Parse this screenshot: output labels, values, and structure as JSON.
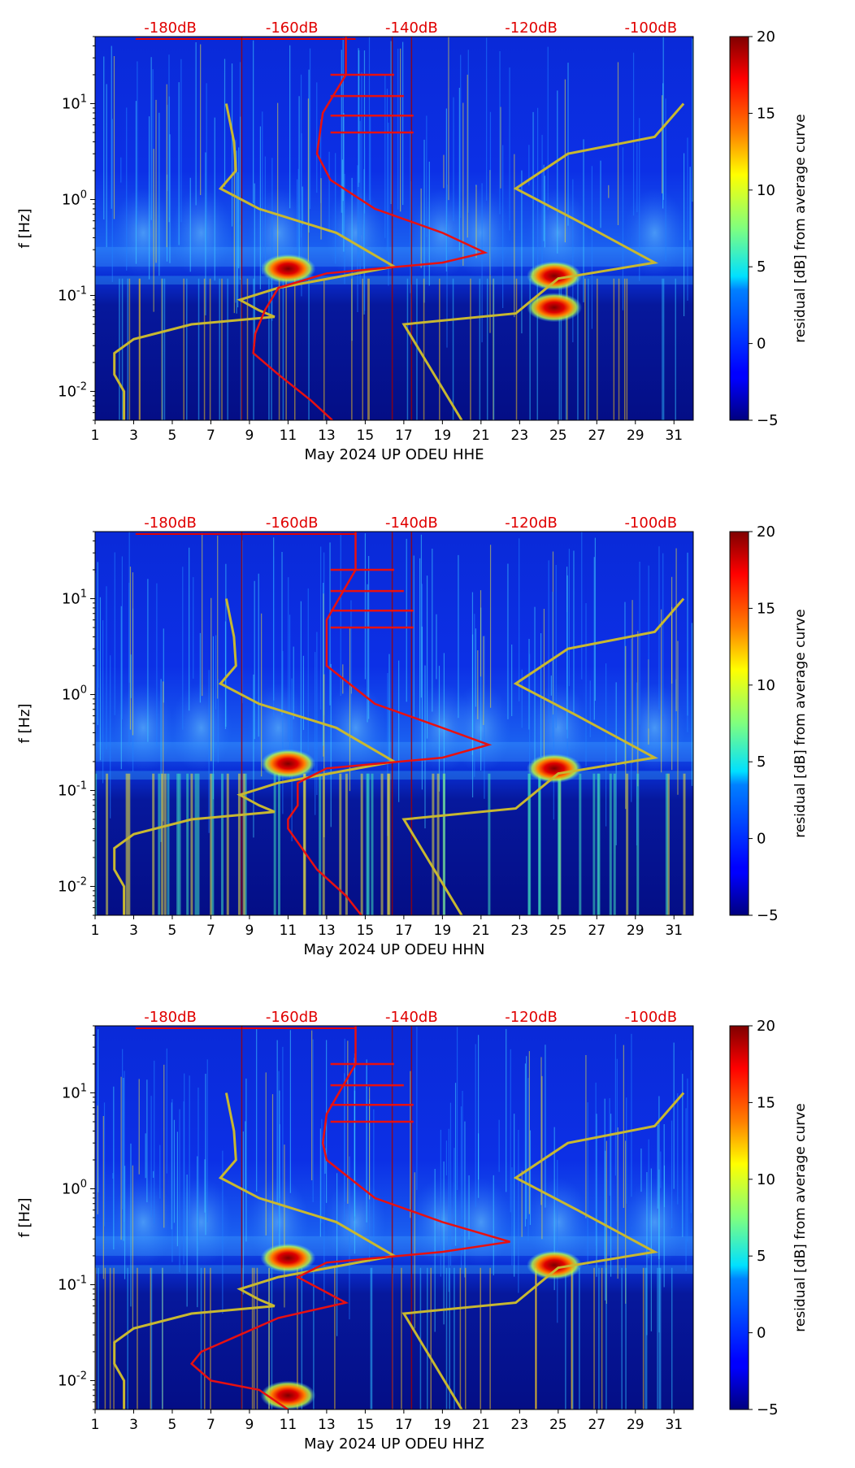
{
  "figure": {
    "description_free": true
  },
  "chart_data": [
    {
      "type": "heatmap",
      "title": "",
      "xlabel": "May 2024 UP ODEU  HHE",
      "ylabel": "f [Hz]",
      "x_ticks": [
        "1",
        "3",
        "5",
        "7",
        "9",
        "11",
        "13",
        "15",
        "17",
        "19",
        "21",
        "23",
        "25",
        "27",
        "29",
        "31"
      ],
      "xlim": [
        1,
        32
      ],
      "y_ticks": [
        {
          "exp": "-2",
          "value": 0.01
        },
        {
          "exp": "-1",
          "value": 0.1
        },
        {
          "exp": "0",
          "value": 1
        },
        {
          "exp": "1",
          "value": 10
        }
      ],
      "ylim": [
        0.005,
        50
      ],
      "y_scale": "log",
      "top_labels": [
        "-180dB",
        "-160dB",
        "-140dB",
        "-120dB",
        "-100dB"
      ],
      "top_label_color": "#e00000",
      "colorbar": {
        "label": "residual [dB] from average curve",
        "ticks": [
          "20",
          "15",
          "10",
          "5",
          "0",
          "−5"
        ],
        "range": [
          -5,
          20
        ]
      },
      "red_curve_day_vs_freq": [
        [
          14.0,
          50
        ],
        [
          14.0,
          20
        ],
        [
          12.8,
          8
        ],
        [
          12.5,
          3
        ],
        [
          13.2,
          1.6
        ],
        [
          15.5,
          0.8
        ],
        [
          19,
          0.45
        ],
        [
          21.2,
          0.28
        ],
        [
          19,
          0.22
        ],
        [
          13,
          0.17
        ],
        [
          10.5,
          0.12
        ],
        [
          9.8,
          0.07
        ],
        [
          9.3,
          0.04
        ],
        [
          9.2,
          0.025
        ],
        [
          10.5,
          0.015
        ],
        [
          12.2,
          0.008
        ],
        [
          13.3,
          0.005
        ]
      ],
      "yellow_curves": [
        [
          [
            7.8,
            10
          ],
          [
            8.2,
            4
          ],
          [
            8.3,
            2
          ],
          [
            7.5,
            1.3
          ],
          [
            9.5,
            0.8
          ],
          [
            13.5,
            0.45
          ],
          [
            16.5,
            0.2
          ],
          [
            10.5,
            0.12
          ],
          [
            8.5,
            0.09
          ],
          [
            9.5,
            0.07
          ],
          [
            10.3,
            0.06
          ],
          [
            6,
            0.05
          ],
          [
            3,
            0.035
          ],
          [
            2,
            0.025
          ],
          [
            2,
            0.015
          ],
          [
            2.5,
            0.01
          ],
          [
            2.5,
            0.005
          ]
        ],
        [
          [
            31.5,
            10
          ],
          [
            30,
            4.5
          ],
          [
            25.5,
            3
          ],
          [
            22.8,
            1.3
          ],
          [
            26,
            0.6
          ],
          [
            30,
            0.22
          ],
          [
            25,
            0.15
          ],
          [
            22.8,
            0.065
          ],
          [
            17,
            0.05
          ],
          [
            20,
            0.005
          ]
        ]
      ],
      "hot_spots": [
        {
          "day": 11,
          "freq": 0.19
        },
        {
          "day": 24.8,
          "freq": 0.16
        },
        {
          "day": 24.8,
          "freq": 0.075
        }
      ]
    },
    {
      "type": "heatmap",
      "title": "",
      "xlabel": "May 2024 UP ODEU  HHN",
      "ylabel": "f [Hz]",
      "x_ticks": [
        "1",
        "3",
        "5",
        "7",
        "9",
        "11",
        "13",
        "15",
        "17",
        "19",
        "21",
        "23",
        "25",
        "27",
        "29",
        "31"
      ],
      "xlim": [
        1,
        32
      ],
      "y_ticks": [
        {
          "exp": "-2",
          "value": 0.01
        },
        {
          "exp": "-1",
          "value": 0.1
        },
        {
          "exp": "0",
          "value": 1
        },
        {
          "exp": "1",
          "value": 10
        }
      ],
      "ylim": [
        0.005,
        50
      ],
      "y_scale": "log",
      "top_labels": [
        "-180dB",
        "-160dB",
        "-140dB",
        "-120dB",
        "-100dB"
      ],
      "top_label_color": "#e00000",
      "colorbar": {
        "label": "residual [dB] from average curve",
        "ticks": [
          "20",
          "15",
          "10",
          "5",
          "0",
          "−5"
        ],
        "range": [
          -5,
          20
        ]
      },
      "red_curve_day_vs_freq": [
        [
          14.5,
          50
        ],
        [
          14.5,
          20
        ],
        [
          13,
          6
        ],
        [
          13,
          3
        ],
        [
          13,
          2
        ],
        [
          15.5,
          0.8
        ],
        [
          19,
          0.45
        ],
        [
          21.4,
          0.3
        ],
        [
          19,
          0.22
        ],
        [
          13,
          0.17
        ],
        [
          11.5,
          0.12
        ],
        [
          11.5,
          0.07
        ],
        [
          11,
          0.05
        ],
        [
          11,
          0.04
        ],
        [
          12.5,
          0.015
        ],
        [
          14,
          0.008
        ],
        [
          14.8,
          0.005
        ]
      ],
      "yellow_curves": [
        [
          [
            7.8,
            10
          ],
          [
            8.2,
            4
          ],
          [
            8.3,
            2
          ],
          [
            7.5,
            1.3
          ],
          [
            9.5,
            0.8
          ],
          [
            13.5,
            0.45
          ],
          [
            16.5,
            0.2
          ],
          [
            10.5,
            0.12
          ],
          [
            8.5,
            0.09
          ],
          [
            9.5,
            0.07
          ],
          [
            10.3,
            0.06
          ],
          [
            6,
            0.05
          ],
          [
            3,
            0.035
          ],
          [
            2,
            0.025
          ],
          [
            2,
            0.015
          ],
          [
            2.5,
            0.01
          ],
          [
            2.5,
            0.005
          ]
        ],
        [
          [
            31.5,
            10
          ],
          [
            30,
            4.5
          ],
          [
            25.5,
            3
          ],
          [
            22.8,
            1.3
          ],
          [
            26,
            0.6
          ],
          [
            30,
            0.22
          ],
          [
            25,
            0.15
          ],
          [
            22.8,
            0.065
          ],
          [
            17,
            0.05
          ],
          [
            20,
            0.005
          ]
        ]
      ],
      "hot_spots": [
        {
          "day": 11,
          "freq": 0.19
        },
        {
          "day": 24.8,
          "freq": 0.17
        }
      ]
    },
    {
      "type": "heatmap",
      "title": "",
      "xlabel": "May 2024 UP ODEU  HHZ",
      "ylabel": "f [Hz]",
      "x_ticks": [
        "1",
        "3",
        "5",
        "7",
        "9",
        "11",
        "13",
        "15",
        "17",
        "19",
        "21",
        "23",
        "25",
        "27",
        "29",
        "31"
      ],
      "xlim": [
        1,
        32
      ],
      "y_ticks": [
        {
          "exp": "-2",
          "value": 0.01
        },
        {
          "exp": "-1",
          "value": 0.1
        },
        {
          "exp": "0",
          "value": 1
        },
        {
          "exp": "1",
          "value": 10
        }
      ],
      "ylim": [
        0.005,
        50
      ],
      "y_scale": "log",
      "top_labels": [
        "-180dB",
        "-160dB",
        "-140dB",
        "-120dB",
        "-100dB"
      ],
      "top_label_color": "#e00000",
      "colorbar": {
        "label": "residual [dB] from average curve",
        "ticks": [
          "20",
          "15",
          "10",
          "5",
          "0",
          "−5"
        ],
        "range": [
          -5,
          20
        ]
      },
      "red_curve_day_vs_freq": [
        [
          14.5,
          50
        ],
        [
          14.5,
          20
        ],
        [
          13,
          6
        ],
        [
          12.8,
          3
        ],
        [
          13,
          2
        ],
        [
          15.5,
          0.8
        ],
        [
          19,
          0.45
        ],
        [
          22.5,
          0.28
        ],
        [
          19,
          0.22
        ],
        [
          13,
          0.17
        ],
        [
          11.5,
          0.12
        ],
        [
          14,
          0.065
        ],
        [
          10.5,
          0.045
        ],
        [
          8.5,
          0.03
        ],
        [
          6.5,
          0.02
        ],
        [
          6,
          0.015
        ],
        [
          7,
          0.01
        ],
        [
          9.5,
          0.008
        ],
        [
          11,
          0.005
        ]
      ],
      "yellow_curves": [
        [
          [
            7.8,
            10
          ],
          [
            8.2,
            4
          ],
          [
            8.3,
            2
          ],
          [
            7.5,
            1.3
          ],
          [
            9.5,
            0.8
          ],
          [
            13.5,
            0.45
          ],
          [
            16.5,
            0.2
          ],
          [
            10.5,
            0.12
          ],
          [
            8.5,
            0.09
          ],
          [
            9.5,
            0.07
          ],
          [
            10.3,
            0.06
          ],
          [
            6,
            0.05
          ],
          [
            3,
            0.035
          ],
          [
            2,
            0.025
          ],
          [
            2,
            0.015
          ],
          [
            2.5,
            0.01
          ],
          [
            2.5,
            0.005
          ]
        ],
        [
          [
            31.5,
            10
          ],
          [
            30,
            4.5
          ],
          [
            25.5,
            3
          ],
          [
            22.8,
            1.3
          ],
          [
            26,
            0.6
          ],
          [
            30,
            0.22
          ],
          [
            25,
            0.15
          ],
          [
            22.8,
            0.065
          ],
          [
            17,
            0.05
          ],
          [
            20,
            0.005
          ]
        ]
      ],
      "hot_spots": [
        {
          "day": 11,
          "freq": 0.19
        },
        {
          "day": 24.8,
          "freq": 0.16
        },
        {
          "day": 11,
          "freq": 0.007
        }
      ]
    }
  ]
}
